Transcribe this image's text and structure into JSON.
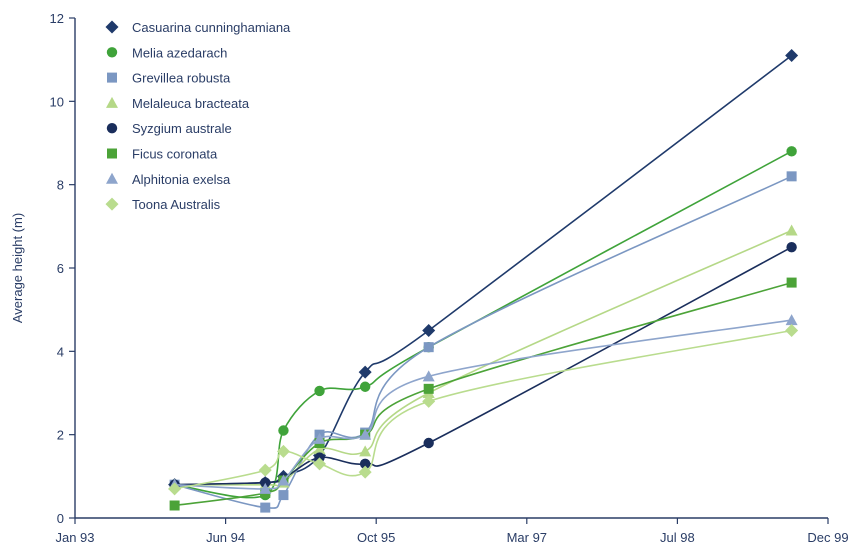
{
  "chart_data": {
    "type": "line",
    "ylabel": "Average height (m)",
    "xlabel": "",
    "x_ticks": [
      "Jan 93",
      "Jun 94",
      "Oct 95",
      "Mar 97",
      "Jul 98",
      "Dec 99"
    ],
    "xlim": [
      "1993-01-01",
      "1999-12-01"
    ],
    "ylim": [
      0,
      12
    ],
    "y_ticks": [
      0,
      2,
      4,
      6,
      8,
      10,
      12
    ],
    "grid": false,
    "legend_position": "top-left",
    "series": [
      {
        "name": "Casuarina cunninghamiana",
        "color": "#1f3a6b",
        "marker": "diamond",
        "x": [
          "1993-12-01",
          "1994-10-01",
          "1994-12-01",
          "1995-04-01",
          "1995-09-01",
          "1996-04-01",
          "1999-08-01"
        ],
        "y": [
          0.8,
          0.85,
          1.0,
          1.5,
          3.5,
          4.5,
          11.1
        ]
      },
      {
        "name": "Melia azedarach",
        "color": "#3fa33a",
        "marker": "circle",
        "x": [
          "1993-12-01",
          "1994-10-01",
          "1994-12-01",
          "1995-04-01",
          "1995-09-01",
          "1996-04-01",
          "1999-08-01"
        ],
        "y": [
          0.8,
          0.55,
          2.1,
          3.05,
          3.15,
          4.1,
          8.8
        ]
      },
      {
        "name": "Grevillea robusta",
        "color": "#7b97c2",
        "marker": "square",
        "x": [
          "1993-12-01",
          "1994-10-01",
          "1994-12-01",
          "1995-04-01",
          "1995-09-01",
          "1996-04-01",
          "1999-08-01"
        ],
        "y": [
          0.8,
          0.25,
          0.55,
          2.0,
          2.05,
          4.1,
          8.2
        ]
      },
      {
        "name": "Melaleuca bracteata",
        "color": "#b5d887",
        "marker": "triangle",
        "x": [
          "1993-12-01",
          "1994-10-01",
          "1994-12-01",
          "1995-04-01",
          "1995-09-01",
          "1996-04-01",
          "1999-08-01"
        ],
        "y": [
          0.8,
          0.8,
          0.85,
          1.65,
          1.6,
          3.0,
          6.9
        ]
      },
      {
        "name": "Syzgium australe",
        "color": "#1a2e5c",
        "marker": "circle",
        "x": [
          "1993-12-01",
          "1994-10-01",
          "1994-12-01",
          "1995-04-01",
          "1995-09-01",
          "1996-04-01",
          "1999-08-01"
        ],
        "y": [
          0.8,
          0.85,
          0.95,
          1.45,
          1.3,
          1.8,
          6.5
        ]
      },
      {
        "name": "Ficus coronata",
        "color": "#4ca338",
        "marker": "square",
        "x": [
          "1993-12-01",
          "1994-10-01",
          "1994-12-01",
          "1995-04-01",
          "1995-09-01",
          "1996-04-01",
          "1999-08-01"
        ],
        "y": [
          0.3,
          0.6,
          0.9,
          1.8,
          2.0,
          3.1,
          5.65
        ]
      },
      {
        "name": "Alphitonia exelsa",
        "color": "#8ea5cc",
        "marker": "triangle",
        "x": [
          "1993-12-01",
          "1994-10-01",
          "1994-12-01",
          "1995-04-01",
          "1995-09-01",
          "1996-04-01",
          "1999-08-01"
        ],
        "y": [
          0.8,
          0.7,
          0.9,
          1.9,
          2.0,
          3.4,
          4.75
        ]
      },
      {
        "name": "Toona Australis",
        "color": "#b9dc8e",
        "marker": "diamond",
        "x": [
          "1993-12-01",
          "1994-10-01",
          "1994-12-01",
          "1995-04-01",
          "1995-09-01",
          "1996-04-01",
          "1999-08-01"
        ],
        "y": [
          0.7,
          1.15,
          1.6,
          1.3,
          1.1,
          2.8,
          4.5
        ]
      }
    ]
  }
}
